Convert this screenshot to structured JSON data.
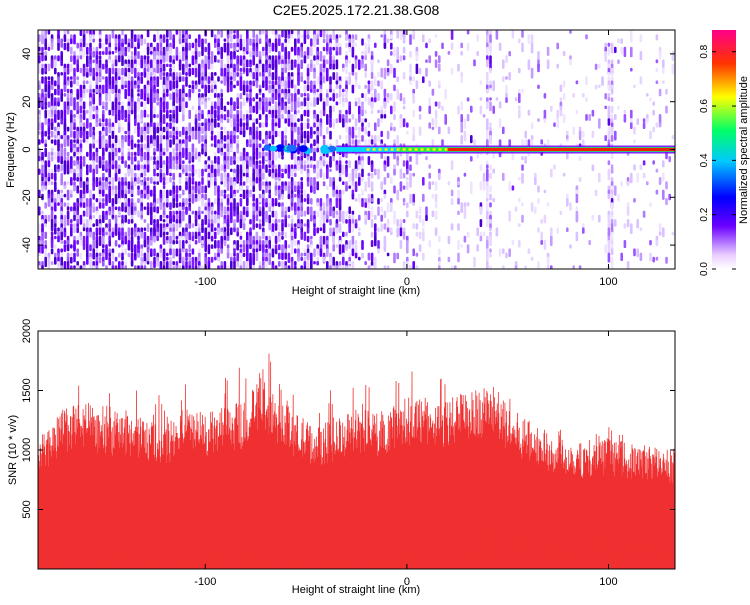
{
  "figure": {
    "title": "C2E5.2025.172.21.38.G08"
  },
  "chart_data": [
    {
      "type": "heatmap",
      "xlabel": "Height of straight line (km)",
      "ylabel": "Frequency (Hz)",
      "xlim": [
        -183,
        133
      ],
      "ylim": [
        -50,
        50
      ],
      "x_ticks": [
        -100,
        0,
        100
      ],
      "y_ticks": [
        -40,
        -20,
        0,
        20,
        40
      ],
      "colorbar": {
        "label": "Normalized spectral amplitude",
        "range": [
          0.0,
          0.88
        ],
        "ticks": [
          0.0,
          0.2,
          0.4,
          0.6,
          0.8
        ],
        "colors": [
          "#ffffff",
          "#6a00ff",
          "#0000ff",
          "#00c8ff",
          "#00ff66",
          "#ffff00",
          "#ff3300",
          "#ff0088"
        ]
      },
      "features": {
        "carrier_line_frequency_hz": 0,
        "carrier_visible_from_km": -70,
        "noise_fade_km": [
          -60,
          20
        ],
        "vertical_streaks_km": [
          40,
          100
        ]
      }
    },
    {
      "type": "area",
      "xlabel": "Height of straight line (km)",
      "ylabel": "SNR (10 * v/v)",
      "xlim": [
        -183,
        133
      ],
      "ylim": [
        0,
        2000
      ],
      "x_ticks": [
        -100,
        0,
        100
      ],
      "y_ticks": [
        500,
        1000,
        1500,
        2000
      ],
      "series_color": "#f03030",
      "envelope": {
        "x": [
          -183,
          -170,
          -160,
          -150,
          -140,
          -130,
          -120,
          -110,
          -100,
          -90,
          -80,
          -72,
          -65,
          -55,
          -45,
          -35,
          -25,
          -15,
          -5,
          5,
          15,
          25,
          35,
          42,
          50,
          60,
          70,
          80,
          90,
          100,
          110,
          120,
          133
        ],
        "upper": [
          1050,
          1300,
          1350,
          1250,
          1280,
          1200,
          1150,
          1300,
          1250,
          1300,
          1350,
          1550,
          1400,
          1250,
          1150,
          1200,
          1300,
          1250,
          1350,
          1400,
          1350,
          1400,
          1450,
          1500,
          1300,
          1200,
          1100,
          1050,
          1000,
          1050,
          1000,
          1000,
          950
        ],
        "peak_upper": [
          1550,
          1700,
          1650,
          1500,
          1600,
          1500,
          1450,
          1600,
          1550,
          1700,
          1700,
          2000,
          1650,
          1450,
          1400,
          1550,
          1650,
          1500,
          1650,
          1700,
          1600,
          1700,
          1800,
          1950,
          1600,
          1450,
          1250,
          1200,
          1150,
          1200,
          1150,
          1100,
          1050
        ],
        "lower": [
          80,
          60,
          70,
          60,
          70,
          60,
          60,
          70,
          60,
          70,
          70,
          80,
          70,
          60,
          60,
          70,
          70,
          70,
          80,
          90,
          150,
          200,
          220,
          250,
          230,
          200,
          180,
          160,
          150,
          150,
          140,
          130,
          120
        ]
      }
    }
  ]
}
